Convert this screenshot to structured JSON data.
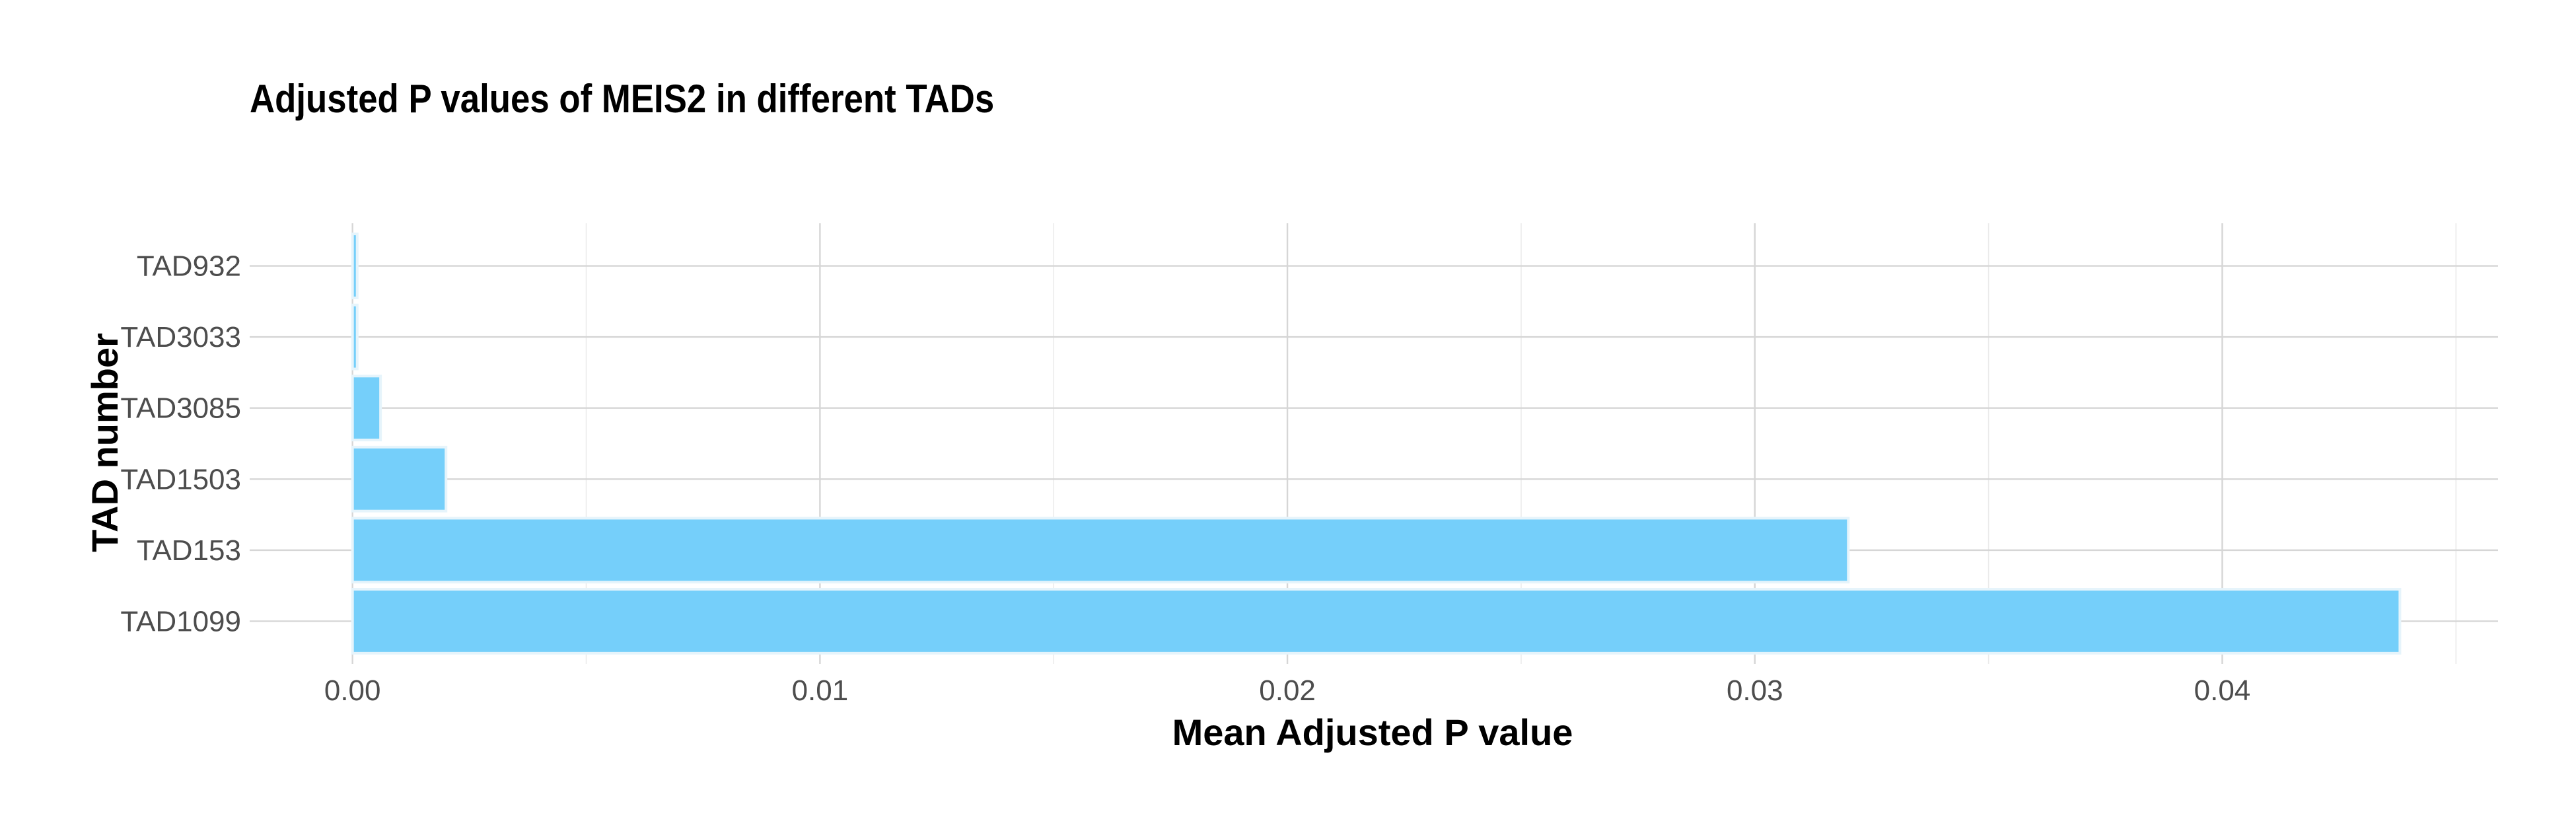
{
  "chart_data": {
    "type": "bar",
    "orientation": "horizontal",
    "title": "Adjusted P values of MEIS2 in different TADs",
    "xlabel": "Mean Adjusted P value",
    "ylabel": "TAD number",
    "categories": [
      "TAD1099",
      "TAD153",
      "TAD1503",
      "TAD3085",
      "TAD3033",
      "TAD932"
    ],
    "values": [
      0.0438,
      0.032,
      0.002,
      0.0006,
      0.0001,
      0.0001
    ],
    "xlim": [
      -0.0022,
      0.0459
    ],
    "xticks": [
      0,
      0.01,
      0.02,
      0.03,
      0.04
    ],
    "xtick_labels": [
      "0.00",
      "0.01",
      "0.02",
      "0.03",
      "0.04"
    ],
    "x_minor_ticks": [
      0.005,
      0.015,
      0.025,
      0.035,
      0.045
    ],
    "grid": true,
    "legend": "none",
    "bar_color": "#75CFFA",
    "bar_outline_color": "#E6F4FB",
    "background": "#FFFFFF"
  }
}
